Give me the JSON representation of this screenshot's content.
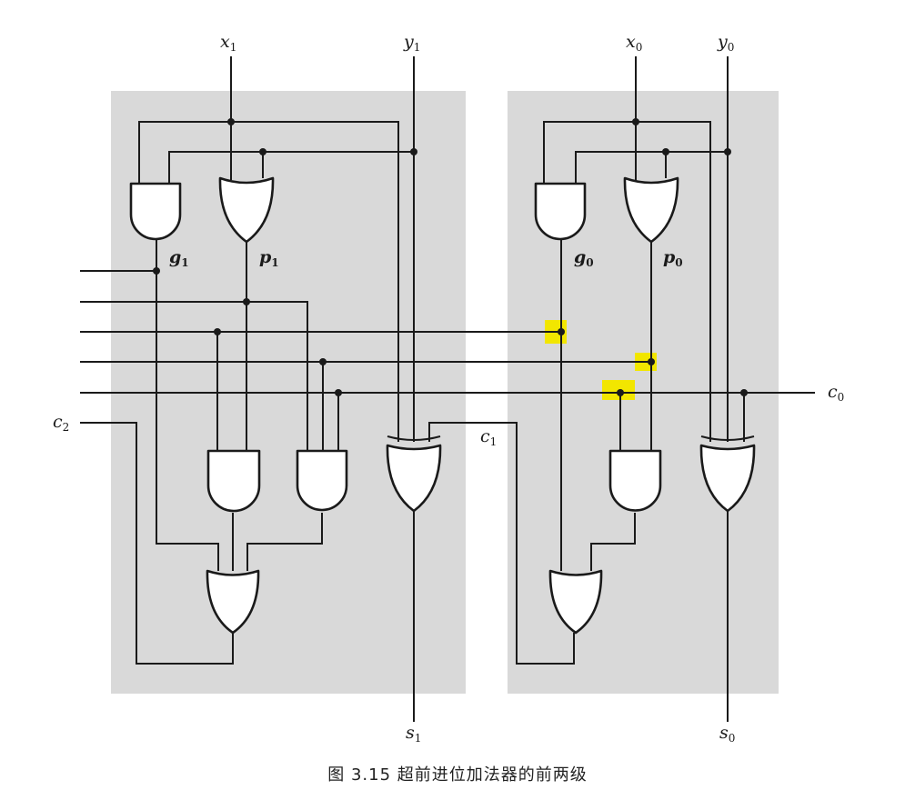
{
  "caption": "图 3.15   超前进位加法器的前两级",
  "inputs": {
    "x1": {
      "base": "x",
      "sub": "1"
    },
    "y1": {
      "base": "y",
      "sub": "1"
    },
    "x0": {
      "base": "x",
      "sub": "0"
    },
    "y0": {
      "base": "y",
      "sub": "0"
    }
  },
  "signals": {
    "g1": {
      "base": "g",
      "sub": "1"
    },
    "p1": {
      "base": "p",
      "sub": "1"
    },
    "g0": {
      "base": "g",
      "sub": "0"
    },
    "p0": {
      "base": "p",
      "sub": "0"
    },
    "c0": {
      "base": "c",
      "sub": "0"
    },
    "c1": {
      "base": "c",
      "sub": "1"
    },
    "c2": {
      "base": "c",
      "sub": "2"
    },
    "s1": {
      "base": "s",
      "sub": "1"
    },
    "s0": {
      "base": "s",
      "sub": "0"
    }
  },
  "colors": {
    "background_panel": "#d9d9d9",
    "wire": "#1a1a1a",
    "highlight": "#f2e600"
  }
}
